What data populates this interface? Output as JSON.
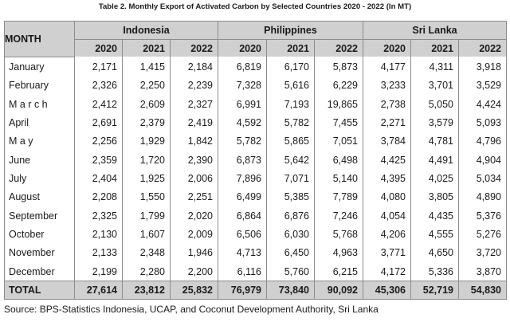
{
  "title": "Table 2. Monthly Export of Activated Carbon by Selected Countries 2020 - 2022 (In MT)",
  "header": {
    "month_label": "MONTH",
    "countries": [
      "Indonesia",
      "Philippines",
      "Sri Lanka"
    ],
    "years": [
      "2020",
      "2021",
      "2022"
    ]
  },
  "rows": [
    {
      "month": "January",
      "values": [
        "2,171",
        "1,415",
        "2,184",
        "6,819",
        "6,170",
        "5,873",
        "4,177",
        "4,311",
        "3,918"
      ]
    },
    {
      "month": "February",
      "values": [
        "2,326",
        "2,250",
        "2,239",
        "7,328",
        "5,616",
        "6,229",
        "3,233",
        "3,701",
        "3,529"
      ]
    },
    {
      "month": "M a r c h",
      "values": [
        "2,412",
        "2,609",
        "2,327",
        "6,991",
        "7,193",
        "19,865",
        "2,738",
        "5,050",
        "4,424"
      ]
    },
    {
      "month": "April",
      "values": [
        "2,691",
        "2,379",
        "2,419",
        "4,592",
        "5,782",
        "7,455",
        "2,271",
        "3,579",
        "5,093"
      ]
    },
    {
      "month": "M a y",
      "values": [
        "2,256",
        "1,929",
        "1,842",
        "5,782",
        "5,865",
        "7,051",
        "3,784",
        "4,781",
        "4,796"
      ]
    },
    {
      "month": "June",
      "values": [
        "2,359",
        "1,720",
        "2,390",
        "6,873",
        "5,642",
        "6,498",
        "4,425",
        "4,491",
        "4,904"
      ]
    },
    {
      "month": "July",
      "values": [
        "2,404",
        "1,925",
        "2,006",
        "7,896",
        "7,071",
        "5,140",
        "4,395",
        "4,025",
        "5,034"
      ]
    },
    {
      "month": "August",
      "values": [
        "2,208",
        "1,550",
        "2,251",
        "6,499",
        "5,385",
        "7,789",
        "4,080",
        "3,805",
        "4,890"
      ]
    },
    {
      "month": "September",
      "values": [
        "2,325",
        "1,799",
        "2,020",
        "6,864",
        "6,876",
        "7,246",
        "4,054",
        "4,435",
        "5,376"
      ]
    },
    {
      "month": "October",
      "values": [
        "2,130",
        "1,607",
        "2,009",
        "6,506",
        "6,030",
        "5,768",
        "4,206",
        "4,555",
        "5,276"
      ]
    },
    {
      "month": "November",
      "values": [
        "2,133",
        "2,348",
        "1,946",
        "4,713",
        "6,450",
        "4,963",
        "3,771",
        "4,650",
        "3,720"
      ]
    },
    {
      "month": "December",
      "values": [
        "2,199",
        "2,280",
        "2,200",
        "6,116",
        "5,760",
        "6,215",
        "4,172",
        "5,336",
        "3,870"
      ]
    }
  ],
  "total": {
    "label": "TOTAL",
    "values": [
      "27,614",
      "23,812",
      "25,832",
      "76,979",
      "73,840",
      "90,092",
      "45,306",
      "52,719",
      "54,830"
    ]
  },
  "source": "Source: BPS-Statistics Indonesia, UCAP, and Coconut Development Authority, Sri Lanka"
}
